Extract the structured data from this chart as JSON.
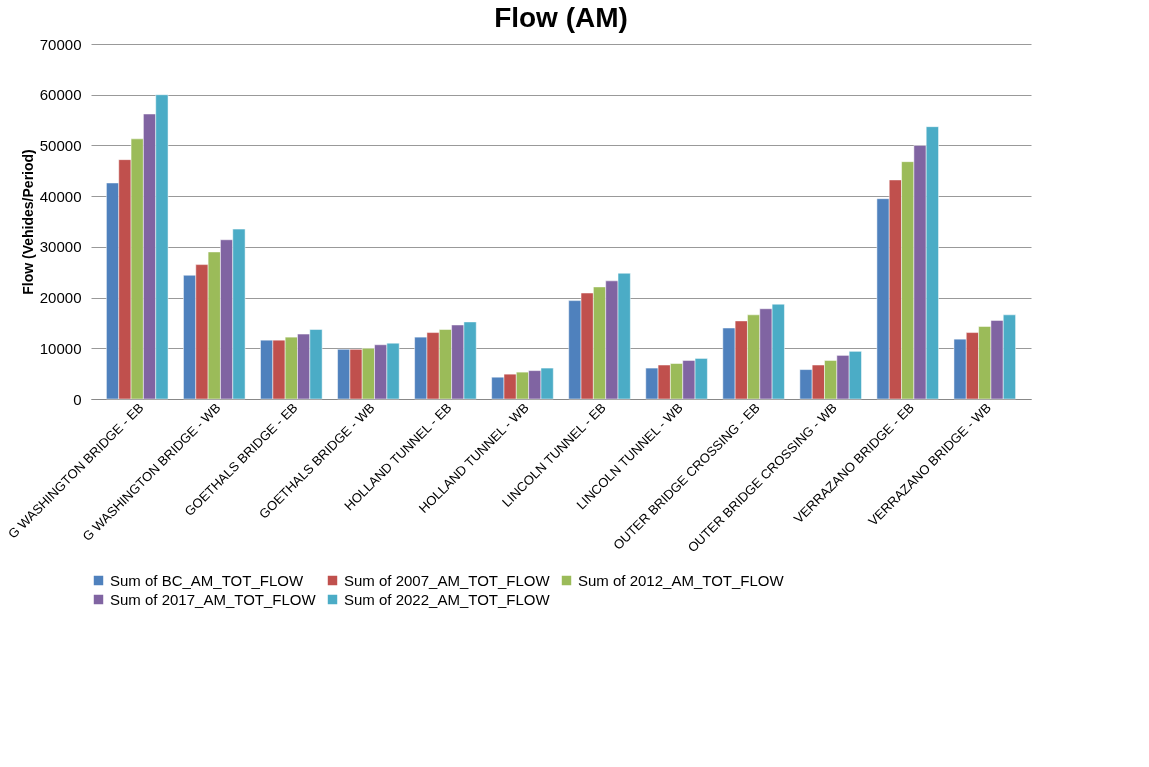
{
  "chart_data": {
    "type": "bar",
    "title": "Flow (AM)",
    "ylabel": "Flow (Vehides/Period)",
    "categories": [
      "G WASHINGTON BRIDGE - EB",
      "G WASHINGTON BRIDGE - WB",
      "GOETHALS BRIDGE - EB",
      "GOETHALS BRIDGE - WB",
      "HOLLAND TUNNEL - EB",
      "HOLLAND TUNNEL - WB",
      "LINCOLN TUNNEL - EB",
      "LINCOLN TUNNEL - WB",
      "OUTER BRIDGE CROSSING - EB",
      "OUTER BRIDGE CROSSING - WB",
      "VERRAZANO BRIDGE - EB",
      "VERRAZANO BRIDGE - WB"
    ],
    "series": [
      {
        "name": "Sum of BC_AM_TOT_FLOW",
        "color": "#4f81bd",
        "values": [
          42600,
          24400,
          11600,
          9800,
          12200,
          4300,
          19400,
          6100,
          14000,
          5800,
          39500,
          11800
        ]
      },
      {
        "name": "Sum of 2007_AM_TOT_FLOW",
        "color": "#c0504d",
        "values": [
          47200,
          26500,
          11600,
          9800,
          13100,
          4900,
          20900,
          6700,
          15400,
          6700,
          43200,
          13100
        ]
      },
      {
        "name": "Sum of 2012_AM_TOT_FLOW",
        "color": "#9bbb59",
        "values": [
          51300,
          29000,
          12200,
          10000,
          13700,
          5300,
          22100,
          7000,
          16600,
          7600,
          46800,
          14300
        ]
      },
      {
        "name": "Sum of 2017_AM_TOT_FLOW",
        "color": "#8064a2",
        "values": [
          56200,
          31400,
          12800,
          10700,
          14600,
          5600,
          23300,
          7600,
          17800,
          8600,
          50000,
          15500
        ]
      },
      {
        "name": "Sum of 2022_AM_TOT_FLOW",
        "color": "#4bacc6",
        "values": [
          60000,
          33500,
          13700,
          11000,
          15200,
          6100,
          24800,
          8000,
          18700,
          9400,
          53700,
          16600
        ]
      }
    ],
    "ylim": [
      0,
      70000
    ],
    "yticks": [
      0,
      10000,
      20000,
      30000,
      40000,
      50000,
      60000,
      70000
    ],
    "grid": "y",
    "legend": "bottom"
  }
}
